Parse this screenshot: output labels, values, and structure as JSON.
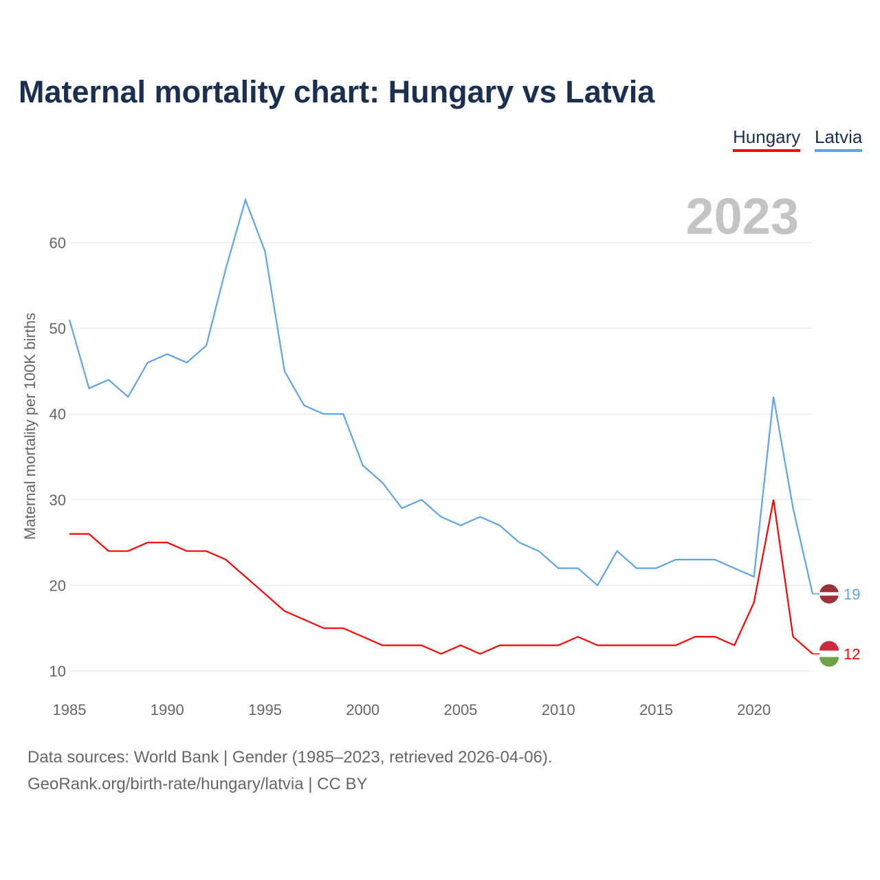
{
  "title": "Maternal mortality chart: Hungary vs Latvia",
  "year_label": "2023",
  "footer": {
    "line1": "Data sources: World Bank | Gender (1985–2023, retrieved 2026-04-06).",
    "line2": "GeoRank.org/birth-rate/hungary/latvia | CC BY"
  },
  "chart_data": {
    "type": "line",
    "title": "Maternal mortality chart: Hungary vs Latvia",
    "xlabel": "",
    "ylabel": "Maternal mortality per 100K births",
    "xlim": [
      1985,
      2023
    ],
    "ylim": [
      10,
      65
    ],
    "xticks": [
      1985,
      1990,
      1995,
      2000,
      2005,
      2010,
      2015,
      2020
    ],
    "yticks": [
      10,
      20,
      30,
      40,
      50,
      60
    ],
    "grid": true,
    "legend": "top-right",
    "x": [
      1985,
      1986,
      1987,
      1988,
      1989,
      1990,
      1991,
      1992,
      1993,
      1994,
      1995,
      1996,
      1997,
      1998,
      1999,
      2000,
      2001,
      2002,
      2003,
      2004,
      2005,
      2006,
      2007,
      2008,
      2009,
      2010,
      2011,
      2012,
      2013,
      2014,
      2015,
      2016,
      2017,
      2018,
      2019,
      2020,
      2021,
      2022,
      2023
    ],
    "series": [
      {
        "name": "Hungary",
        "color": "#ff0000",
        "end_label": "12",
        "values": [
          26,
          26,
          24,
          24,
          25,
          25,
          24,
          24,
          23,
          21,
          19,
          17,
          16,
          15,
          15,
          14,
          13,
          13,
          13,
          12,
          13,
          12,
          13,
          13,
          13,
          13,
          14,
          13,
          13,
          13,
          13,
          13,
          14,
          14,
          13,
          18,
          30,
          14,
          12
        ]
      },
      {
        "name": "Latvia",
        "color": "#5ba3ea",
        "end_label": "19",
        "values": [
          51,
          43,
          44,
          42,
          46,
          47,
          46,
          48,
          57,
          65,
          59,
          45,
          41,
          40,
          40,
          34,
          32,
          29,
          30,
          28,
          27,
          28,
          27,
          25,
          24,
          22,
          22,
          20,
          24,
          22,
          22,
          23,
          23,
          23,
          22,
          21,
          42,
          29,
          19
        ]
      }
    ]
  }
}
